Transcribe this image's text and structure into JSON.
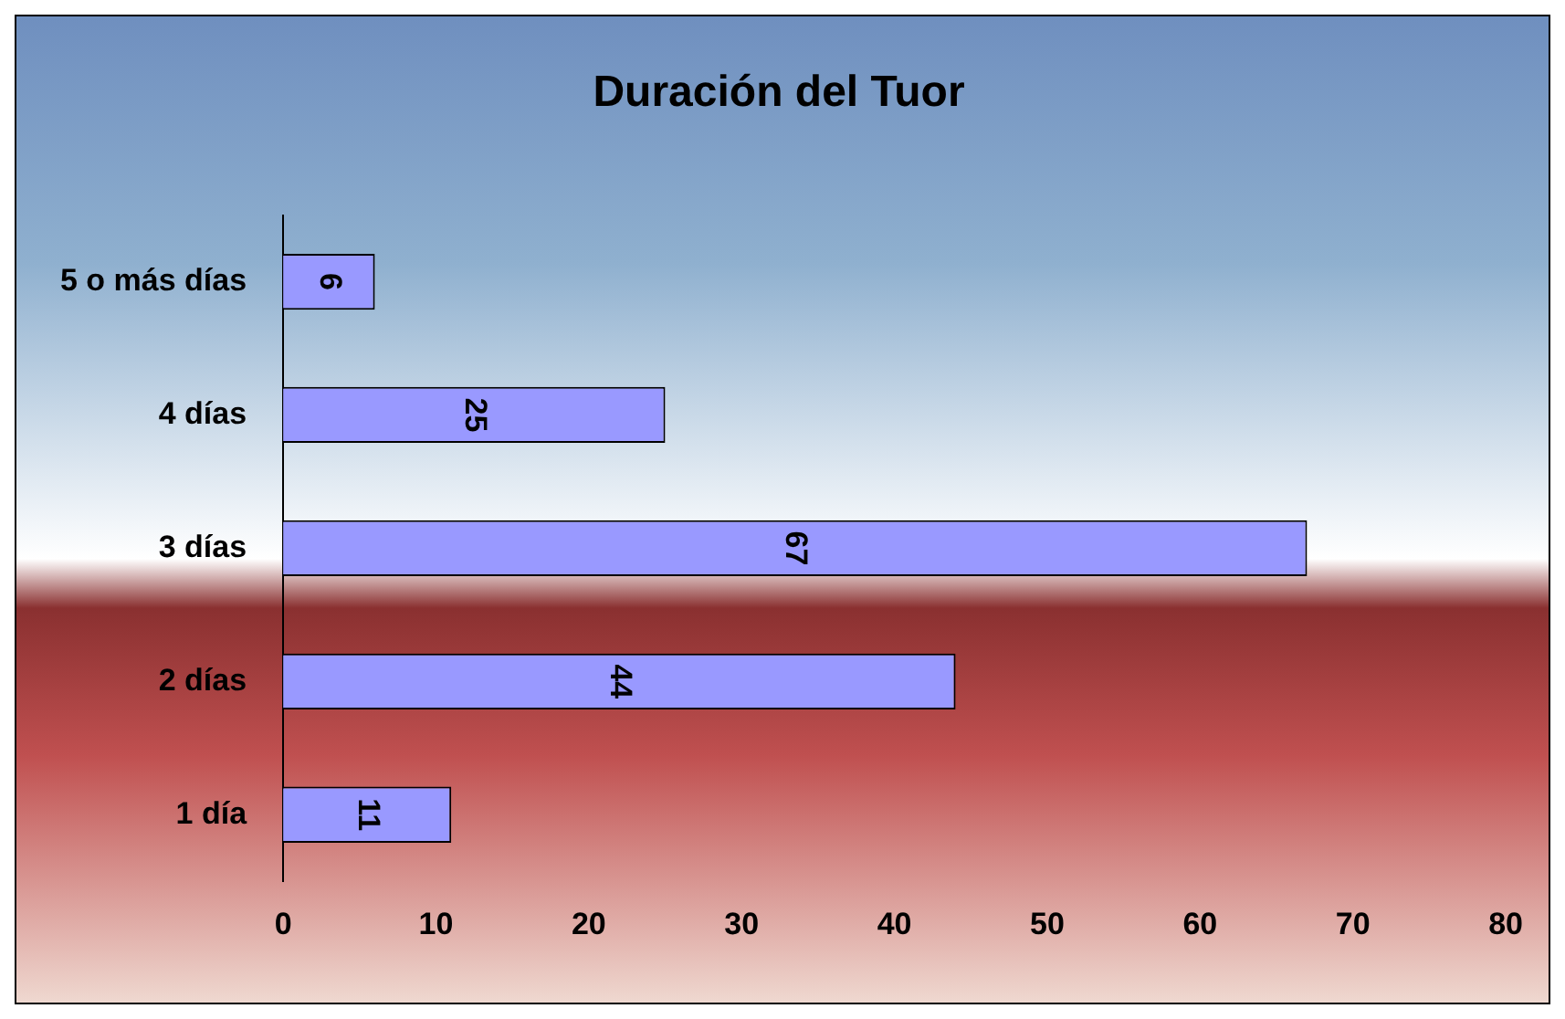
{
  "chart_data": {
    "type": "bar",
    "orientation": "horizontal",
    "title": "Duración del Tuor",
    "categories": [
      "5 o más días",
      "4 días",
      "3 días",
      "2 días",
      "1 día"
    ],
    "values": [
      6,
      25,
      67,
      44,
      11
    ],
    "color": "#9999ff",
    "xlim": [
      0,
      80
    ],
    "xticks": [
      0,
      10,
      20,
      30,
      40,
      50,
      60,
      70,
      80
    ],
    "grid": false,
    "legend": false,
    "data_labels": true
  }
}
